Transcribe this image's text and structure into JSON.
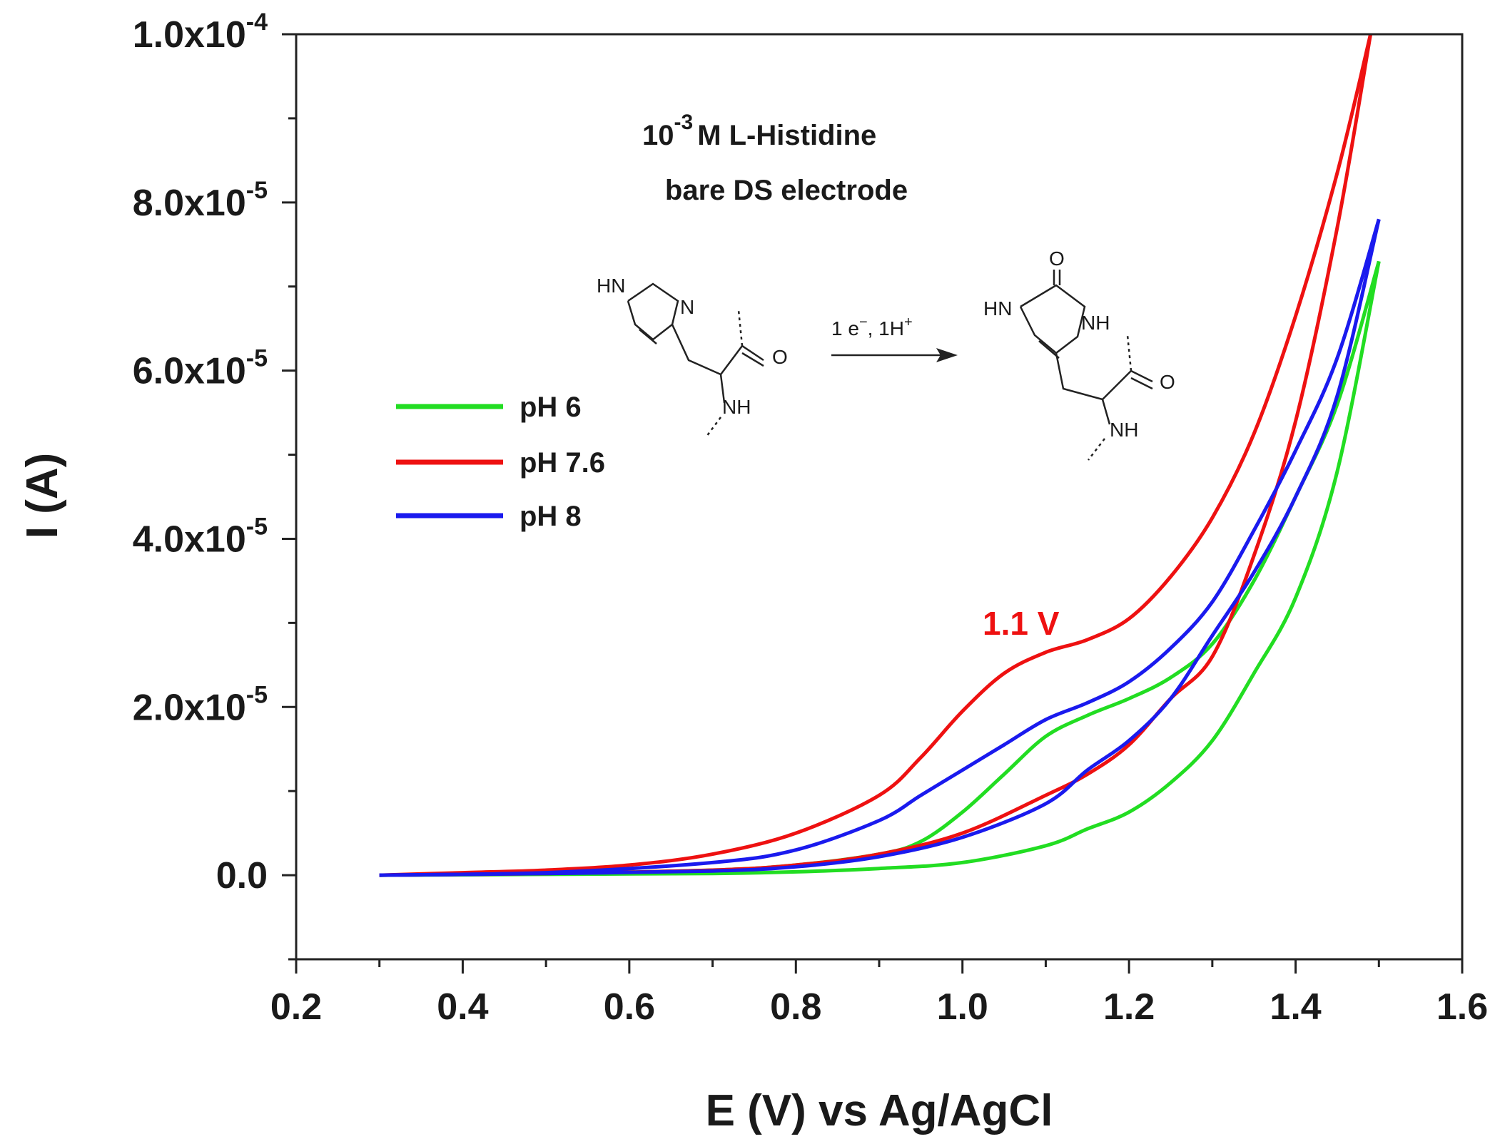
{
  "chart_data": {
    "type": "line",
    "xlabel": "E (V) vs Ag/AgCl",
    "ylabel": "I (A)",
    "xlim": [
      0.2,
      1.6
    ],
    "ylim": [
      -1e-05,
      0.0001
    ],
    "x_ticks": [
      "0.2",
      "0.4",
      "0.6",
      "0.8",
      "1.0",
      "1.2",
      "1.4",
      "1.6"
    ],
    "y_ticks": [
      {
        "value": 0,
        "mantissa": "0.0",
        "exp": ""
      },
      {
        "value": 2e-05,
        "mantissa": "2.0x10",
        "exp": "-5"
      },
      {
        "value": 4e-05,
        "mantissa": "4.0x10",
        "exp": "-5"
      },
      {
        "value": 6e-05,
        "mantissa": "6.0x10",
        "exp": "-5"
      },
      {
        "value": 8e-05,
        "mantissa": "8.0x10",
        "exp": "-5"
      },
      {
        "value": 0.0001,
        "mantissa": "1.0x10",
        "exp": "-4"
      }
    ],
    "legend_position": "center-left",
    "series": [
      {
        "name": "pH 6",
        "color": "#22dd22",
        "forward_x": [
          0.3,
          0.5,
          0.7,
          0.8,
          0.9,
          0.95,
          1.0,
          1.05,
          1.1,
          1.15,
          1.2,
          1.25,
          1.3,
          1.35,
          1.4,
          1.45,
          1.5
        ],
        "forward_y": [
          0,
          2e-07,
          6e-07,
          1.2e-06,
          2.5e-06,
          4e-06,
          7.5e-06,
          1.2e-05,
          1.65e-05,
          1.9e-05,
          2.1e-05,
          2.35e-05,
          2.75e-05,
          3.5e-05,
          4.5e-05,
          5.6e-05,
          7.3e-05
        ],
        "reverse_x": [
          1.5,
          1.45,
          1.4,
          1.35,
          1.3,
          1.25,
          1.2,
          1.15,
          1.1,
          1.0,
          0.9,
          0.8,
          0.7,
          0.5,
          0.3
        ],
        "reverse_y": [
          7.3e-05,
          4.8e-05,
          3.3e-05,
          2.4e-05,
          1.6e-05,
          1.1e-05,
          7.5e-06,
          5.5e-06,
          3.5e-06,
          1.5e-06,
          8e-07,
          4e-07,
          2e-07,
          1e-07,
          0
        ]
      },
      {
        "name": "pH 7.6",
        "color": "#ee1111",
        "forward_x": [
          0.3,
          0.4,
          0.5,
          0.6,
          0.7,
          0.8,
          0.9,
          0.95,
          1.0,
          1.05,
          1.1,
          1.15,
          1.2,
          1.25,
          1.3,
          1.35,
          1.4,
          1.45,
          1.49
        ],
        "forward_y": [
          0,
          3e-07,
          6e-07,
          1.2e-06,
          2.5e-06,
          5e-06,
          9.5e-06,
          1.4e-05,
          1.95e-05,
          2.4e-05,
          2.65e-05,
          2.8e-05,
          3.05e-05,
          3.55e-05,
          4.25e-05,
          5.25e-05,
          6.65e-05,
          8.35e-05,
          0.0001
        ],
        "reverse_x": [
          1.49,
          1.45,
          1.4,
          1.35,
          1.3,
          1.25,
          1.2,
          1.15,
          1.1,
          1.0,
          0.9,
          0.8,
          0.7,
          0.5,
          0.3
        ],
        "reverse_y": [
          0.0001,
          7.7e-05,
          5.4e-05,
          3.8e-05,
          2.6e-05,
          2.1e-05,
          1.55e-05,
          1.2e-05,
          9.5e-06,
          5e-06,
          2.5e-06,
          1.2e-06,
          6e-07,
          2e-07,
          0
        ]
      },
      {
        "name": "pH 8",
        "color": "#1a1aee",
        "forward_x": [
          0.3,
          0.5,
          0.7,
          0.8,
          0.9,
          0.95,
          1.0,
          1.05,
          1.1,
          1.15,
          1.2,
          1.25,
          1.3,
          1.35,
          1.4,
          1.45,
          1.5
        ],
        "forward_y": [
          0,
          3e-07,
          1.5e-06,
          3e-06,
          6.5e-06,
          9.5e-06,
          1.25e-05,
          1.55e-05,
          1.85e-05,
          2.05e-05,
          2.3e-05,
          2.7e-05,
          3.25e-05,
          4.1e-05,
          5.05e-05,
          6.15e-05,
          7.8e-05
        ],
        "reverse_x": [
          1.5,
          1.45,
          1.4,
          1.35,
          1.3,
          1.25,
          1.2,
          1.15,
          1.1,
          1.0,
          0.9,
          0.8,
          0.7,
          0.5,
          0.3
        ],
        "reverse_y": [
          7.8e-05,
          5.7e-05,
          4.5e-05,
          3.6e-05,
          2.85e-05,
          2.1e-05,
          1.6e-05,
          1.25e-05,
          8.5e-06,
          4.5e-06,
          2.2e-06,
          1e-06,
          5e-07,
          2e-07,
          0
        ]
      }
    ],
    "annotations": {
      "title_line1_base": "10",
      "title_line1_exp": "-3",
      "title_line1_rest": "M L-Histidine",
      "title_line2": "bare DS electrode",
      "peak_label": "1.1 V",
      "peak_label_color": "#ee1111",
      "reaction_conditions_a": "1 e",
      "reaction_conditions_a_sup": "−",
      "reaction_conditions_b": ", 1H",
      "reaction_conditions_b_sup": "+"
    },
    "structures": {
      "left": {
        "hn": "HN",
        "n": "N",
        "o": "O",
        "nh": "NH"
      },
      "right": {
        "hn": "HN",
        "nh_ring": "NH",
        "o_top": "O",
        "o": "O",
        "nh": "NH"
      }
    }
  }
}
